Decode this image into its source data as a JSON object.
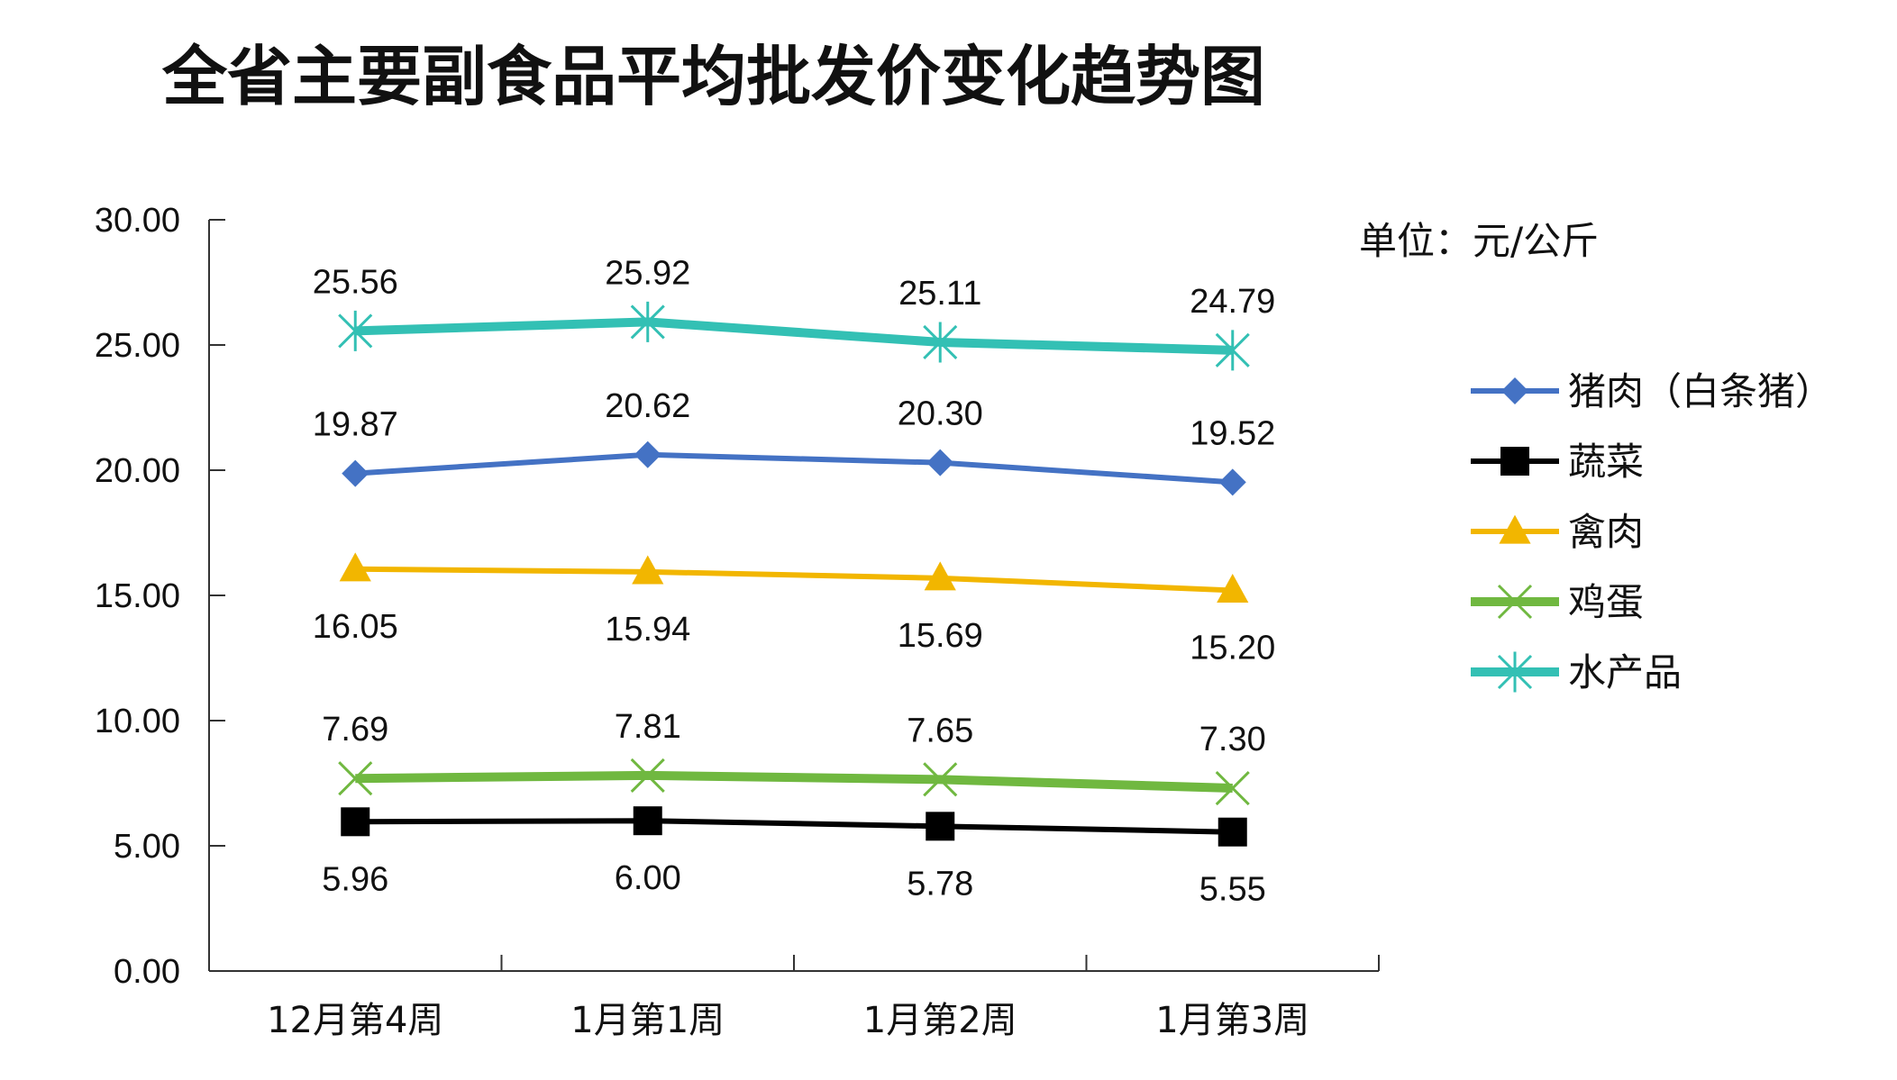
{
  "chart_data": {
    "type": "line",
    "title": "全省主要副食品平均批发价变化趋势图",
    "unit_label": "单位：元/公斤",
    "categories": [
      "12月第4周",
      "1月第1周",
      "1月第2周",
      "1月第3周"
    ],
    "ylim": [
      0,
      30
    ],
    "yticks": [
      "0.00",
      "5.00",
      "10.00",
      "15.00",
      "20.00",
      "25.00",
      "30.00"
    ],
    "legend_position": "right",
    "grid": false,
    "series": [
      {
        "name": "猪肉（白条猪）",
        "values": [
          19.87,
          20.62,
          20.3,
          19.52
        ],
        "labels": [
          "19.87",
          "20.62",
          "20.30",
          "19.52"
        ],
        "color": "#4472C4",
        "marker": "diamond",
        "label_position": "above"
      },
      {
        "name": "蔬菜",
        "values": [
          5.96,
          6.0,
          5.78,
          5.55
        ],
        "labels": [
          "5.96",
          "6.00",
          "5.78",
          "5.55"
        ],
        "color": "#000000",
        "marker": "square",
        "label_position": "below"
      },
      {
        "name": "禽肉",
        "values": [
          16.05,
          15.94,
          15.69,
          15.2
        ],
        "labels": [
          "16.05",
          "15.94",
          "15.69",
          "15.20"
        ],
        "color": "#F2B600",
        "marker": "triangle",
        "label_position": "below"
      },
      {
        "name": "鸡蛋",
        "values": [
          7.69,
          7.81,
          7.65,
          7.3
        ],
        "labels": [
          "7.69",
          "7.81",
          "7.65",
          "7.30"
        ],
        "color": "#70B840",
        "marker": "x",
        "label_position": "above"
      },
      {
        "name": "水产品",
        "values": [
          25.56,
          25.92,
          25.11,
          24.79
        ],
        "labels": [
          "25.56",
          "25.92",
          "25.11",
          "24.79"
        ],
        "color": "#33C0B4",
        "marker": "star",
        "label_position": "above"
      }
    ]
  }
}
